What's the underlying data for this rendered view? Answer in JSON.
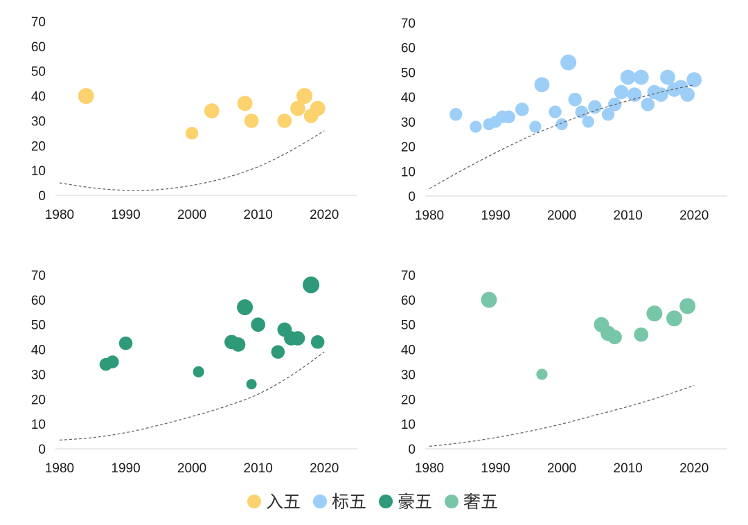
{
  "legend": {
    "items": [
      {
        "label": "入五",
        "color": "#FCD26E"
      },
      {
        "label": "标五",
        "color": "#9DCEF8"
      },
      {
        "label": "豪五",
        "color": "#2E9A7A"
      },
      {
        "label": "奢五",
        "color": "#78C6A8"
      }
    ]
  },
  "chart_data": [
    {
      "type": "scatter",
      "series_name": "入五",
      "color": "#FCD26E",
      "xlim": [
        1980,
        2025
      ],
      "ylim": [
        0,
        70
      ],
      "x_ticks": [
        1980,
        1990,
        2000,
        2010,
        2020
      ],
      "y_ticks": [
        0,
        10,
        20,
        30,
        40,
        50,
        60,
        70
      ],
      "grid": false,
      "points": [
        {
          "x": 1984,
          "y": 40,
          "size": 1.0
        },
        {
          "x": 2000,
          "y": 25,
          "size": 0.8
        },
        {
          "x": 2003,
          "y": 34,
          "size": 0.95
        },
        {
          "x": 2008,
          "y": 37,
          "size": 0.95
        },
        {
          "x": 2009,
          "y": 30,
          "size": 0.9
        },
        {
          "x": 2014,
          "y": 30,
          "size": 0.9
        },
        {
          "x": 2016,
          "y": 35,
          "size": 0.95
        },
        {
          "x": 2017,
          "y": 40,
          "size": 1.0
        },
        {
          "x": 2018,
          "y": 32,
          "size": 0.9
        },
        {
          "x": 2019,
          "y": 35,
          "size": 0.95
        }
      ],
      "trendline": {
        "style": "dashed",
        "x": [
          1980,
          1985,
          1990,
          1995,
          2000,
          2005,
          2010,
          2015,
          2020
        ],
        "y": [
          5,
          3,
          2,
          2.3,
          4,
          7,
          11.5,
          18,
          26
        ]
      }
    },
    {
      "type": "scatter",
      "series_name": "标五",
      "color": "#9DCEF8",
      "xlim": [
        1980,
        2025
      ],
      "ylim": [
        0,
        70
      ],
      "x_ticks": [
        1980,
        1990,
        2000,
        2010,
        2020
      ],
      "y_ticks": [
        0,
        10,
        20,
        30,
        40,
        50,
        60,
        70
      ],
      "grid": false,
      "points": [
        {
          "x": 1984,
          "y": 33,
          "size": 0.8
        },
        {
          "x": 1987,
          "y": 28,
          "size": 0.75
        },
        {
          "x": 1989,
          "y": 29,
          "size": 0.75
        },
        {
          "x": 1990,
          "y": 30,
          "size": 0.75
        },
        {
          "x": 1991,
          "y": 32,
          "size": 0.8
        },
        {
          "x": 1992,
          "y": 32,
          "size": 0.8
        },
        {
          "x": 1994,
          "y": 35,
          "size": 0.85
        },
        {
          "x": 1996,
          "y": 28,
          "size": 0.75
        },
        {
          "x": 1997,
          "y": 45,
          "size": 0.95
        },
        {
          "x": 1999,
          "y": 34,
          "size": 0.8
        },
        {
          "x": 2000,
          "y": 29,
          "size": 0.75
        },
        {
          "x": 2001,
          "y": 54,
          "size": 1.0
        },
        {
          "x": 2002,
          "y": 39,
          "size": 0.85
        },
        {
          "x": 2003,
          "y": 34,
          "size": 0.8
        },
        {
          "x": 2004,
          "y": 30,
          "size": 0.75
        },
        {
          "x": 2005,
          "y": 36,
          "size": 0.85
        },
        {
          "x": 2007,
          "y": 33,
          "size": 0.8
        },
        {
          "x": 2008,
          "y": 37,
          "size": 0.85
        },
        {
          "x": 2009,
          "y": 42,
          "size": 0.9
        },
        {
          "x": 2010,
          "y": 48,
          "size": 0.95
        },
        {
          "x": 2011,
          "y": 41,
          "size": 0.9
        },
        {
          "x": 2012,
          "y": 48,
          "size": 0.95
        },
        {
          "x": 2013,
          "y": 37,
          "size": 0.85
        },
        {
          "x": 2014,
          "y": 42,
          "size": 0.9
        },
        {
          "x": 2015,
          "y": 41,
          "size": 0.9
        },
        {
          "x": 2016,
          "y": 48,
          "size": 0.95
        },
        {
          "x": 2017,
          "y": 43,
          "size": 0.9
        },
        {
          "x": 2018,
          "y": 44,
          "size": 0.9
        },
        {
          "x": 2019,
          "y": 41,
          "size": 0.9
        },
        {
          "x": 2020,
          "y": 47,
          "size": 0.95
        }
      ],
      "trendline": {
        "style": "dashed",
        "x": [
          1980,
          1985,
          1990,
          1995,
          2000,
          2005,
          2010,
          2015,
          2020
        ],
        "y": [
          3,
          10.5,
          17.5,
          24,
          29.5,
          34.5,
          38.5,
          42,
          45
        ]
      }
    },
    {
      "type": "scatter",
      "series_name": "豪五",
      "color": "#2E9A7A",
      "xlim": [
        1980,
        2025
      ],
      "ylim": [
        0,
        70
      ],
      "x_ticks": [
        1980,
        1990,
        2000,
        2010,
        2020
      ],
      "y_ticks": [
        0,
        10,
        20,
        30,
        40,
        50,
        60,
        70
      ],
      "grid": false,
      "points": [
        {
          "x": 1987,
          "y": 34,
          "size": 0.8
        },
        {
          "x": 1988,
          "y": 35,
          "size": 0.8
        },
        {
          "x": 1990,
          "y": 42.5,
          "size": 0.85
        },
        {
          "x": 2001,
          "y": 31,
          "size": 0.7
        },
        {
          "x": 2006,
          "y": 43,
          "size": 0.9
        },
        {
          "x": 2007,
          "y": 42,
          "size": 0.9
        },
        {
          "x": 2008,
          "y": 57,
          "size": 1.0
        },
        {
          "x": 2009,
          "y": 26,
          "size": 0.65
        },
        {
          "x": 2010,
          "y": 50,
          "size": 0.9
        },
        {
          "x": 2013,
          "y": 39,
          "size": 0.85
        },
        {
          "x": 2014,
          "y": 48,
          "size": 0.9
        },
        {
          "x": 2015,
          "y": 44.5,
          "size": 0.9
        },
        {
          "x": 2016,
          "y": 44.5,
          "size": 0.9
        },
        {
          "x": 2018,
          "y": 66,
          "size": 1.05
        },
        {
          "x": 2019,
          "y": 43,
          "size": 0.85
        }
      ],
      "trendline": {
        "style": "dashed",
        "x": [
          1980,
          1985,
          1990,
          1995,
          2000,
          2005,
          2010,
          2015,
          2020
        ],
        "y": [
          3.5,
          4.5,
          6.5,
          9.5,
          13,
          17,
          22,
          29.5,
          39
        ]
      }
    },
    {
      "type": "scatter",
      "series_name": "奢五",
      "color": "#78C6A8",
      "xlim": [
        1980,
        2025
      ],
      "ylim": [
        0,
        70
      ],
      "x_ticks": [
        1980,
        1990,
        2000,
        2010,
        2020
      ],
      "y_ticks": [
        0,
        10,
        20,
        30,
        40,
        50,
        60,
        70
      ],
      "grid": false,
      "points": [
        {
          "x": 1989,
          "y": 60,
          "size": 1.0
        },
        {
          "x": 1997,
          "y": 30,
          "size": 0.7
        },
        {
          "x": 2006,
          "y": 50,
          "size": 0.95
        },
        {
          "x": 2007,
          "y": 46.5,
          "size": 0.95
        },
        {
          "x": 2008,
          "y": 45,
          "size": 0.9
        },
        {
          "x": 2012,
          "y": 46,
          "size": 0.9
        },
        {
          "x": 2014,
          "y": 54.5,
          "size": 1.0
        },
        {
          "x": 2017,
          "y": 52.5,
          "size": 1.0
        },
        {
          "x": 2019,
          "y": 57.5,
          "size": 1.0
        }
      ],
      "trendline": {
        "style": "dashed",
        "x": [
          1980,
          1985,
          1990,
          1995,
          2000,
          2005,
          2010,
          2015,
          2020
        ],
        "y": [
          1,
          2.5,
          4.5,
          7,
          10,
          13.5,
          17,
          21,
          25.5
        ]
      }
    }
  ]
}
